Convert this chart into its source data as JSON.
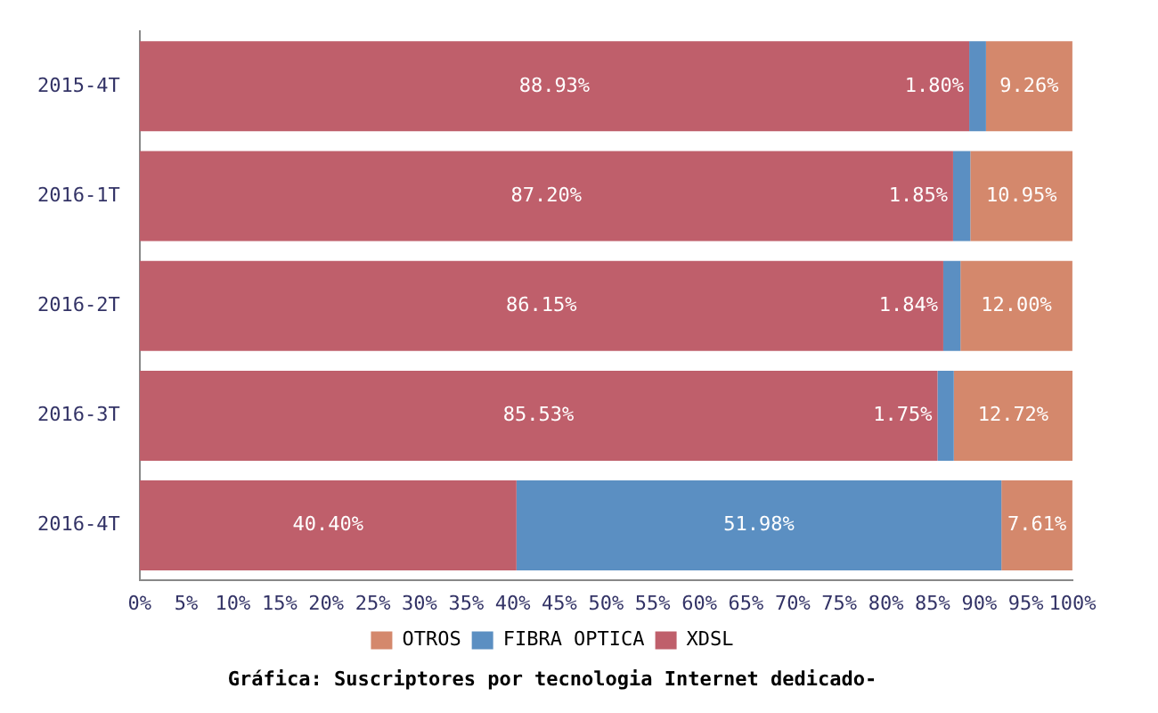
{
  "chart_data": {
    "type": "bar",
    "orientation": "horizontal",
    "stacked": true,
    "title": "Gráfica: Suscriptores por tecnologia Internet dedicado-",
    "categories": [
      "2015-4T",
      "2016-1T",
      "2016-2T",
      "2016-3T",
      "2016-4T"
    ],
    "series": [
      {
        "name": "XDSL",
        "color": "#bf5f6b",
        "values": [
          88.93,
          87.2,
          86.15,
          85.53,
          40.4
        ],
        "value_labels": [
          "88.93%",
          "87.20%",
          "86.15%",
          "85.53%",
          "40.40%"
        ]
      },
      {
        "name": "FIBRA OPTICA",
        "color": "#5b8fc2",
        "values": [
          1.8,
          1.85,
          1.84,
          1.75,
          51.98
        ],
        "value_labels": [
          "1.80%",
          "1.85%",
          "1.84%",
          "1.75%",
          "51.98%"
        ]
      },
      {
        "name": "OTROS",
        "color": "#d4886c",
        "values": [
          9.26,
          10.95,
          12.0,
          12.72,
          7.61
        ],
        "value_labels": [
          "9.26%",
          "10.95%",
          "12.00%",
          "12.72%",
          "7.61%"
        ]
      }
    ],
    "xlim": [
      0,
      100
    ],
    "xticks": [
      {
        "value": 0,
        "label": "0%"
      },
      {
        "value": 5,
        "label": "5%"
      },
      {
        "value": 10,
        "label": "10%"
      },
      {
        "value": 15,
        "label": "15%"
      },
      {
        "value": 20,
        "label": "20%"
      },
      {
        "value": 25,
        "label": "25%"
      },
      {
        "value": 30,
        "label": "30%"
      },
      {
        "value": 35,
        "label": "35%"
      },
      {
        "value": 40,
        "label": "40%"
      },
      {
        "value": 45,
        "label": "45%"
      },
      {
        "value": 50,
        "label": "50%"
      },
      {
        "value": 55,
        "label": "55%"
      },
      {
        "value": 60,
        "label": "60%"
      },
      {
        "value": 65,
        "label": "65%"
      },
      {
        "value": 70,
        "label": "70%"
      },
      {
        "value": 75,
        "label": "75%"
      },
      {
        "value": 80,
        "label": "80%"
      },
      {
        "value": 85,
        "label": "85%"
      },
      {
        "value": 90,
        "label": "90%"
      },
      {
        "value": 95,
        "label": "95%"
      },
      {
        "value": 100,
        "label": "100%"
      }
    ],
    "legend": "bottom"
  }
}
